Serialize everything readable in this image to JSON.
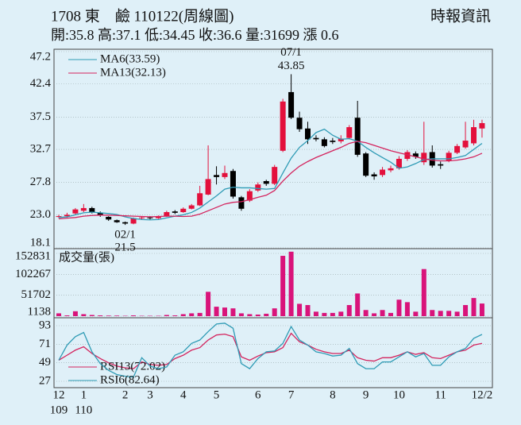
{
  "header": {
    "title": "1708 東　鹼 110122(周線圖)",
    "source": "時報資訊",
    "quote": "開:35.8 高:37.1 低:34.45 收:36.6 量:31699 漲 0.6"
  },
  "chart_data": [
    {
      "type": "candlestick",
      "up_color": "#e3103c",
      "down_color": "#000000",
      "grid": true,
      "ylim": [
        18.1,
        47.2
      ],
      "yticks": [
        18.1,
        {
          "value": 23,
          "label": "23.0"
        },
        27.8,
        32.7,
        37.5,
        42.4,
        47.2
      ],
      "open": [
        22.7,
        22.8,
        23.2,
        23.6,
        24.0,
        23.3,
        22.7,
        22.2,
        21.9,
        21.7,
        22.5,
        22.6,
        22.5,
        22.8,
        23.5,
        23.4,
        23.9,
        24.4,
        26.0,
        28.9,
        28.6,
        29.5,
        25.6,
        25.1,
        26.6,
        28.0,
        27.6,
        32.5,
        41.2,
        37.4,
        35.8,
        34.4,
        34.2,
        34.0,
        33.9,
        34.4,
        37.4,
        32.1,
        29.0,
        28.9,
        29.6,
        29.9,
        31.3,
        32.1,
        30.8,
        32.3,
        30.5,
        31.0,
        32.2,
        33.0,
        33.6,
        35.8
      ],
      "high": [
        23.0,
        23.3,
        24.0,
        24.6,
        24.2,
        23.5,
        22.8,
        22.3,
        22.0,
        22.6,
        22.8,
        22.8,
        22.9,
        23.6,
        23.7,
        24.1,
        24.6,
        27.3,
        33.3,
        30.2,
        30.3,
        29.8,
        25.8,
        26.8,
        27.8,
        28.2,
        30.4,
        40.2,
        43.85,
        38.3,
        36.8,
        34.8,
        34.5,
        34.4,
        34.8,
        36.3,
        39.9,
        32.3,
        29.3,
        30.1,
        30.3,
        31.7,
        32.6,
        32.4,
        36.8,
        33.3,
        30.9,
        32.5,
        33.5,
        36.8,
        37.1,
        37.1
      ],
      "low": [
        22.5,
        22.6,
        23.0,
        23.4,
        23.2,
        22.7,
        22.1,
        21.8,
        21.5,
        21.6,
        22.3,
        22.3,
        22.4,
        22.7,
        23.1,
        23.3,
        23.8,
        24.3,
        25.9,
        27.5,
        28.3,
        25.4,
        23.6,
        24.9,
        26.4,
        27.3,
        27.4,
        32.3,
        37.2,
        35.3,
        33.5,
        33.9,
        33.0,
        33.5,
        33.6,
        34.2,
        31.6,
        28.6,
        28.2,
        28.6,
        29.3,
        29.7,
        31.0,
        31.3,
        30.4,
        30.0,
        29.8,
        30.8,
        32.0,
        32.8,
        33.3,
        34.45
      ],
      "close": [
        22.8,
        23.0,
        23.8,
        24.0,
        23.4,
        22.9,
        22.3,
        21.9,
        21.7,
        22.5,
        22.6,
        22.5,
        22.7,
        23.4,
        23.3,
        23.9,
        24.4,
        26.2,
        28.3,
        28.6,
        29.2,
        25.7,
        23.9,
        26.5,
        27.5,
        27.6,
        30.1,
        39.8,
        37.4,
        35.7,
        34.2,
        34.2,
        33.2,
        33.8,
        34.3,
        36.0,
        31.9,
        28.8,
        28.7,
        29.7,
        29.9,
        31.3,
        32.3,
        31.6,
        32.2,
        30.3,
        30.3,
        32.2,
        33.2,
        34.0,
        36.0,
        36.6
      ],
      "series": [
        {
          "name": "MA6(33.59)",
          "color": "#2f9bb5",
          "values": [
            22.6,
            22.7,
            23.0,
            23.3,
            23.4,
            23.3,
            23.2,
            23.05,
            22.7,
            22.45,
            22.3,
            22.25,
            22.3,
            22.55,
            22.8,
            23.0,
            23.35,
            24.0,
            24.9,
            25.8,
            26.8,
            27.1,
            27.0,
            27.0,
            26.9,
            26.8,
            26.9,
            29.2,
            31.4,
            33.0,
            34.0,
            35.2,
            35.7,
            34.8,
            34.2,
            34.3,
            33.9,
            33.0,
            32.2,
            31.5,
            30.8,
            29.9,
            30.1,
            30.6,
            31.2,
            31.3,
            31.3,
            31.3,
            31.5,
            31.8,
            32.7,
            33.59
          ]
        },
        {
          "name": "MA13(32.13)",
          "color": "#d4245e",
          "values": [
            22.4,
            22.5,
            22.6,
            22.8,
            22.9,
            22.95,
            22.95,
            22.9,
            22.85,
            22.8,
            22.75,
            22.7,
            22.75,
            22.8,
            22.8,
            22.75,
            22.8,
            23.1,
            23.6,
            24.1,
            24.6,
            24.85,
            24.95,
            25.25,
            25.6,
            25.9,
            26.6,
            28.0,
            29.2,
            30.2,
            30.9,
            31.5,
            32.0,
            32.5,
            33.0,
            33.6,
            33.9,
            33.7,
            33.3,
            32.9,
            32.5,
            32.2,
            31.9,
            31.6,
            31.3,
            31.1,
            31.0,
            31.0,
            31.1,
            31.3,
            31.6,
            32.13
          ]
        }
      ],
      "annotations": [
        {
          "label": "07/1",
          "value": 43.85
        },
        {
          "label": "02/1",
          "value": 21.5
        }
      ]
    },
    {
      "type": "bar",
      "title": "成交量(張)",
      "color": "#d9137a",
      "grid": true,
      "ylim": [
        1138,
        152831
      ],
      "yticks": [
        1138,
        51702,
        102267,
        152831
      ],
      "values": [
        8000,
        3000,
        13000,
        6000,
        4000,
        3000,
        2500,
        2500,
        2000,
        3000,
        2000,
        2000,
        2000,
        4000,
        3000,
        6000,
        8000,
        9000,
        60000,
        24000,
        22000,
        20000,
        8000,
        6000,
        5000,
        7000,
        20000,
        147000,
        157000,
        31000,
        28000,
        12000,
        9000,
        9000,
        12000,
        28000,
        56000,
        16000,
        8000,
        16000,
        9000,
        41000,
        35000,
        12000,
        115000,
        16000,
        14000,
        14000,
        12000,
        28000,
        45000,
        31699
      ]
    },
    {
      "type": "line",
      "grid": true,
      "ylim": [
        27,
        93
      ],
      "yticks": [
        27,
        49,
        71,
        93
      ],
      "categories": [
        "12",
        null,
        null,
        "1",
        null,
        null,
        null,
        null,
        "2",
        null,
        null,
        "3",
        null,
        null,
        null,
        "4",
        null,
        null,
        null,
        "5",
        null,
        null,
        null,
        null,
        "6",
        null,
        null,
        null,
        "7",
        null,
        null,
        null,
        null,
        "8",
        null,
        null,
        null,
        "9",
        null,
        null,
        null,
        "10",
        null,
        null,
        null,
        null,
        "11",
        null,
        null,
        null,
        null,
        "12/2"
      ],
      "year_labels": [
        "109",
        null,
        null,
        "110",
        null,
        null,
        null,
        null,
        null,
        null,
        null,
        null,
        null,
        null,
        null,
        null,
        null,
        null,
        null,
        null,
        null,
        null,
        null,
        null,
        null,
        null,
        null,
        null,
        null,
        null,
        null,
        null,
        null,
        null,
        null,
        null,
        null,
        null,
        null,
        null,
        null,
        null,
        null,
        null,
        null,
        null,
        null,
        null,
        null,
        null,
        null,
        null
      ],
      "series": [
        {
          "name": "RSI13(72.02)",
          "color": "#d4245e",
          "values": [
            52,
            58,
            64,
            68,
            60,
            54,
            49,
            45,
            43,
            42,
            50,
            47,
            46,
            47,
            54,
            58,
            64,
            67,
            76,
            82,
            83,
            80,
            56,
            52,
            57,
            61,
            62,
            67,
            84,
            74,
            70,
            65,
            62,
            60,
            60,
            64,
            55,
            52,
            51,
            55,
            55,
            58,
            62,
            59,
            61,
            55,
            54,
            58,
            62,
            64,
            70,
            72.02
          ]
        },
        {
          "name": "RSI6(82.64)",
          "color": "#2f9bb5",
          "values": [
            52,
            70,
            80,
            85,
            62,
            48,
            40,
            35,
            33,
            32,
            55,
            45,
            42,
            44,
            58,
            62,
            72,
            76,
            86,
            95,
            96,
            90,
            48,
            42,
            54,
            62,
            63,
            72,
            92,
            76,
            70,
            62,
            60,
            57,
            58,
            66,
            48,
            42,
            42,
            50,
            50,
            56,
            62,
            56,
            60,
            46,
            46,
            56,
            62,
            66,
            78,
            82.64
          ]
        }
      ]
    }
  ]
}
